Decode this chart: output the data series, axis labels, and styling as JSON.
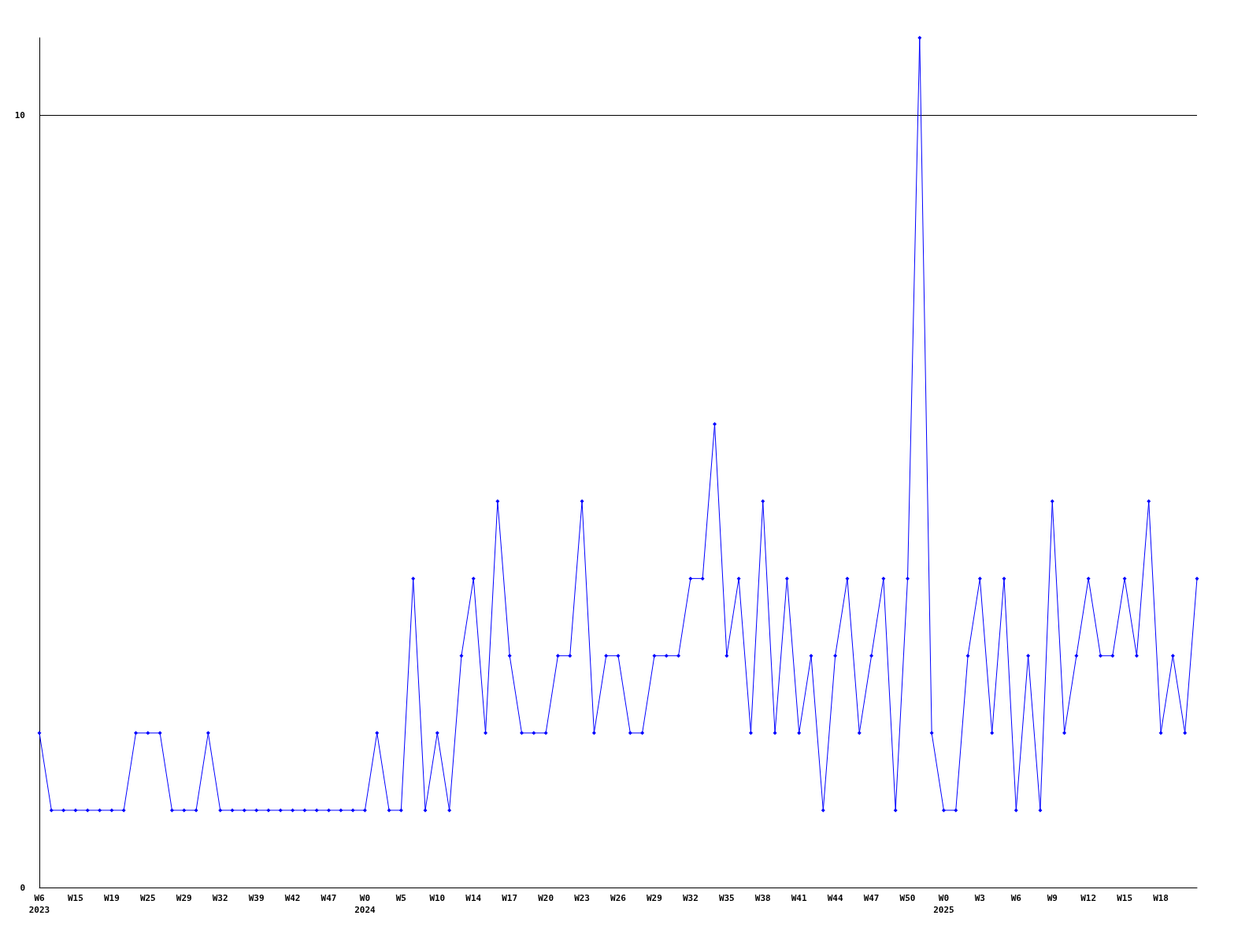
{
  "chart_data": {
    "type": "line",
    "categories": [
      "W6\n2023",
      null,
      null,
      "W15",
      null,
      null,
      "W19",
      null,
      null,
      "W25",
      null,
      null,
      "W29",
      null,
      null,
      "W32",
      null,
      null,
      "W39",
      null,
      null,
      "W42",
      null,
      null,
      "W47",
      null,
      null,
      "W0\n2024",
      null,
      null,
      "W5",
      null,
      null,
      "W10",
      null,
      null,
      "W14",
      null,
      null,
      "W17",
      null,
      null,
      "W20",
      null,
      null,
      "W23",
      null,
      null,
      "W26",
      null,
      null,
      "W29",
      null,
      null,
      "W32",
      null,
      null,
      "W35",
      null,
      null,
      "W38",
      null,
      null,
      "W41",
      null,
      null,
      "W44",
      null,
      null,
      "W47",
      null,
      null,
      "W50",
      null,
      null,
      "W0\n2025",
      null,
      null,
      "W3",
      null,
      null,
      "W6",
      null,
      null,
      "W9",
      null,
      null,
      "W12",
      null,
      null,
      "W15",
      null,
      null,
      "W18",
      null,
      null,
      null
    ],
    "series": [
      {
        "color": "#0000ff",
        "values": [
          2,
          1,
          1,
          1,
          1,
          1,
          1,
          1,
          2,
          2,
          2,
          1,
          1,
          1,
          2,
          1,
          1,
          1,
          1,
          1,
          1,
          1,
          1,
          1,
          1,
          1,
          1,
          1,
          2,
          1,
          1,
          4,
          1,
          2,
          1,
          3,
          4,
          2,
          5,
          3,
          2,
          2,
          2,
          3,
          3,
          5,
          2,
          3,
          3,
          2,
          2,
          3,
          3,
          3,
          4,
          4,
          6,
          3,
          4,
          2,
          5,
          2,
          4,
          2,
          3,
          1,
          3,
          4,
          2,
          3,
          4,
          1,
          4,
          11,
          2,
          1,
          1,
          3,
          4,
          2,
          4,
          1,
          3,
          1,
          5,
          2,
          3,
          4,
          3,
          3,
          4,
          3,
          5,
          2,
          3,
          2,
          4
        ]
      }
    ],
    "ylim": [
      0,
      11
    ],
    "yticks": [
      0,
      10
    ],
    "grid": "y",
    "marker": "diamond",
    "line_style": "solid"
  }
}
